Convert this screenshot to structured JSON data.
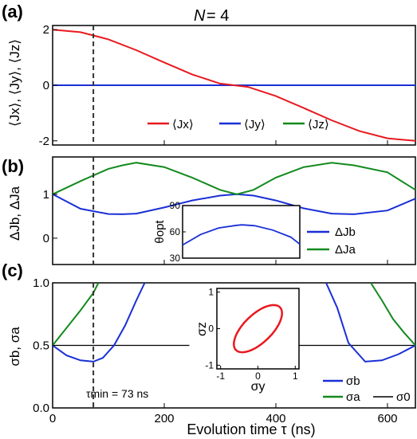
{
  "figure": {
    "title_prefix": "N",
    "title_value": "= 4",
    "xlabel": "Evolution time τ (ns)",
    "x_ticks": [
      "0",
      "200",
      "400",
      "600"
    ],
    "tau_min_label": "τmin = 73 ns"
  },
  "colors": {
    "red": "#e8191f",
    "blue": "#1a2fd6",
    "green": "#138a1e",
    "black": "#000000"
  },
  "chart_data": [
    {
      "type": "line",
      "panel_label": "(a)",
      "ylabel": "⟨Jx⟩, ⟨Jy⟩, ⟨Jz⟩",
      "xlim": [
        0,
        650
      ],
      "ylim": [
        -2.15,
        2.15
      ],
      "y_ticks": [
        2,
        0,
        -2
      ],
      "x": [
        0,
        50,
        100,
        150,
        200,
        250,
        300,
        325,
        350,
        400,
        450,
        500,
        550,
        600,
        650
      ],
      "series": [
        {
          "name": "⟨Jx⟩",
          "color": "red",
          "values": [
            2.0,
            1.91,
            1.65,
            1.26,
            0.82,
            0.39,
            0.06,
            0.0,
            -0.06,
            -0.39,
            -0.82,
            -1.26,
            -1.65,
            -1.91,
            -2.0
          ]
        },
        {
          "name": "⟨Jy⟩",
          "color": "blue",
          "values": [
            0,
            0,
            0,
            0,
            0,
            0,
            0,
            0,
            0,
            0,
            0,
            0,
            0,
            0,
            0
          ]
        },
        {
          "name": "⟨Jz⟩",
          "color": "green",
          "values": [
            0,
            0,
            0,
            0,
            0,
            0,
            0,
            0,
            0,
            0,
            0,
            0,
            0,
            0,
            0
          ]
        }
      ],
      "legend_position": "bottom-center",
      "vline_x": 73
    },
    {
      "type": "line",
      "panel_label": "(b)",
      "ylabel": "ΔJb, ΔJa",
      "xlim": [
        0,
        650
      ],
      "ylim": [
        -0.6,
        1.85
      ],
      "y_ticks": [
        1,
        0
      ],
      "x": [
        0,
        50,
        100,
        125,
        150,
        200,
        250,
        300,
        330,
        360,
        400,
        450,
        500,
        540,
        600,
        650
      ],
      "series": [
        {
          "name": "ΔJb",
          "color": "blue",
          "values": [
            1.0,
            0.67,
            0.55,
            0.545,
            0.56,
            0.7,
            0.86,
            0.97,
            1.0,
            0.97,
            0.86,
            0.68,
            0.56,
            0.545,
            0.63,
            0.9
          ]
        },
        {
          "name": "ΔJa",
          "color": "green",
          "values": [
            1.0,
            1.3,
            1.58,
            1.66,
            1.72,
            1.62,
            1.38,
            1.1,
            1.0,
            1.1,
            1.38,
            1.62,
            1.72,
            1.66,
            1.5,
            1.1
          ]
        }
      ],
      "legend_position": "bottom-right",
      "vline_x": 73,
      "inset": {
        "ylabel": "θopt",
        "ylim": [
          30,
          90
        ],
        "y_ticks": [
          90,
          60,
          30
        ],
        "x": [
          0,
          100,
          200,
          300,
          330,
          400,
          500,
          600,
          650
        ],
        "values": [
          45,
          57,
          64.5,
          67.5,
          68,
          67,
          62,
          54,
          46
        ]
      }
    },
    {
      "type": "line",
      "panel_label": "(c)",
      "ylabel": "σb, σa",
      "xlim": [
        0,
        650
      ],
      "ylim": [
        0.0,
        1.0
      ],
      "y_ticks": [
        "1.0",
        "0.5",
        "0.0"
      ],
      "x_left": [
        0,
        25,
        50,
        73,
        90,
        110,
        130,
        150,
        165
      ],
      "x_right": [
        490,
        510,
        530,
        560,
        590,
        620,
        650
      ],
      "series": [
        {
          "name": "σb",
          "color": "blue",
          "left_values": [
            0.5,
            0.42,
            0.38,
            0.37,
            0.4,
            0.5,
            0.66,
            0.86,
            1.0
          ],
          "right_values": [
            1.0,
            0.8,
            0.52,
            0.37,
            0.38,
            0.43,
            0.5
          ]
        },
        {
          "name": "σa",
          "color": "green",
          "left_values": [
            0.5,
            0.64,
            0.78,
            0.92,
            1.0
          ],
          "left_x": [
            0,
            25,
            50,
            73,
            82
          ],
          "right_values": [
            1.0,
            0.86,
            0.71,
            0.6,
            0.5
          ],
          "right_x": [
            570,
            590,
            610,
            630,
            650
          ]
        },
        {
          "name": "σ0",
          "color": "black",
          "values": [
            0.5,
            0.5
          ]
        }
      ],
      "legend_position": "bottom-right",
      "vline_x": 73,
      "inset": {
        "xlabel": "σy",
        "ylabel": "σz",
        "xlim": [
          -1.1,
          1.1
        ],
        "ylim": [
          -1.1,
          1.1
        ],
        "x_ticks": [
          "-1",
          "0",
          "1"
        ],
        "y_ticks": [
          "1",
          "0",
          "-1"
        ],
        "ellipse": {
          "cx": 0,
          "cy": 0,
          "a": 0.83,
          "b": 0.38,
          "angle_deg": 45
        }
      }
    }
  ]
}
